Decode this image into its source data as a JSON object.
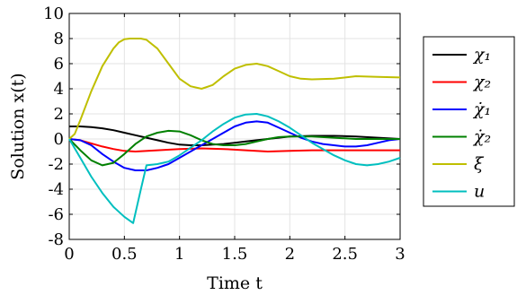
{
  "chart_data": {
    "type": "line",
    "xlabel": "Time t",
    "ylabel": "Solution x(t)",
    "xlim": [
      0,
      3
    ],
    "ylim": [
      -8,
      10
    ],
    "xticks": [
      0,
      0.5,
      1,
      1.5,
      2,
      2.5,
      3
    ],
    "yticks": [
      -8,
      -6,
      -4,
      -2,
      0,
      2,
      4,
      6,
      8,
      10
    ],
    "xtick_labels": [
      "0",
      "0.5",
      "1",
      "1.5",
      "2",
      "2.5",
      "3"
    ],
    "ytick_labels": [
      "-8",
      "-6",
      "-4",
      "-2",
      "0",
      "2",
      "4",
      "6",
      "8",
      "10"
    ],
    "grid": true,
    "legend_position": "outside-right",
    "series": [
      {
        "name": "χ₁",
        "color": "#000000",
        "x": [
          0,
          0.1,
          0.2,
          0.3,
          0.4,
          0.5,
          0.6,
          0.7,
          0.8,
          0.9,
          1.0,
          1.1,
          1.2,
          1.3,
          1.4,
          1.5,
          1.6,
          1.7,
          1.8,
          1.9,
          2.0,
          2.2,
          2.4,
          2.6,
          2.8,
          3.0
        ],
        "y": [
          1.0,
          1.0,
          0.95,
          0.85,
          0.7,
          0.5,
          0.3,
          0.1,
          -0.1,
          -0.3,
          -0.45,
          -0.5,
          -0.5,
          -0.45,
          -0.4,
          -0.3,
          -0.2,
          -0.1,
          0.0,
          0.1,
          0.2,
          0.25,
          0.25,
          0.2,
          0.1,
          0.0
        ]
      },
      {
        "name": "χ₂",
        "color": "#ff0000",
        "x": [
          0,
          0.1,
          0.2,
          0.3,
          0.4,
          0.5,
          0.6,
          0.8,
          1.0,
          1.2,
          1.4,
          1.6,
          1.8,
          2.0,
          2.2,
          2.4,
          2.6,
          2.8,
          3.0
        ],
        "y": [
          0,
          -0.1,
          -0.35,
          -0.6,
          -0.8,
          -0.95,
          -1.0,
          -0.9,
          -0.8,
          -0.75,
          -0.8,
          -0.9,
          -1.0,
          -0.95,
          -0.9,
          -0.9,
          -0.9,
          -0.9,
          -0.9
        ]
      },
      {
        "name": "χ̇₁",
        "color": "#0000ff",
        "x": [
          0,
          0.1,
          0.2,
          0.3,
          0.4,
          0.5,
          0.6,
          0.7,
          0.8,
          0.9,
          1.0,
          1.1,
          1.2,
          1.3,
          1.4,
          1.5,
          1.6,
          1.7,
          1.8,
          1.9,
          2.0,
          2.1,
          2.2,
          2.3,
          2.4,
          2.5,
          2.6,
          2.7,
          2.8,
          2.9,
          3.0
        ],
        "y": [
          0,
          -0.1,
          -0.5,
          -1.2,
          -1.8,
          -2.3,
          -2.5,
          -2.5,
          -2.3,
          -2.0,
          -1.5,
          -1.0,
          -0.5,
          0.0,
          0.5,
          1.0,
          1.3,
          1.4,
          1.3,
          0.9,
          0.5,
          0.1,
          -0.2,
          -0.4,
          -0.5,
          -0.6,
          -0.6,
          -0.5,
          -0.3,
          -0.1,
          0.0
        ]
      },
      {
        "name": "χ̇₂",
        "color": "#008000",
        "x": [
          0,
          0.1,
          0.2,
          0.3,
          0.4,
          0.5,
          0.6,
          0.7,
          0.8,
          0.9,
          1.0,
          1.1,
          1.2,
          1.3,
          1.4,
          1.5,
          1.6,
          1.7,
          1.8,
          1.9,
          2.0,
          2.2,
          2.4,
          2.6,
          2.8,
          3.0
        ],
        "y": [
          0,
          -0.9,
          -1.7,
          -2.1,
          -1.9,
          -1.2,
          -0.4,
          0.2,
          0.5,
          0.65,
          0.6,
          0.3,
          -0.1,
          -0.4,
          -0.5,
          -0.5,
          -0.4,
          -0.2,
          0.0,
          0.15,
          0.2,
          0.2,
          0.1,
          0.0,
          0.0,
          0.0
        ]
      },
      {
        "name": "ξ",
        "color": "#bfbf00",
        "x": [
          0,
          0.05,
          0.1,
          0.2,
          0.3,
          0.4,
          0.45,
          0.5,
          0.55,
          0.6,
          0.65,
          0.7,
          0.8,
          0.9,
          1.0,
          1.1,
          1.2,
          1.3,
          1.4,
          1.5,
          1.6,
          1.7,
          1.8,
          1.9,
          2.0,
          2.1,
          2.2,
          2.4,
          2.6,
          2.8,
          3.0
        ],
        "y": [
          0,
          0.4,
          1.5,
          3.8,
          5.8,
          7.2,
          7.7,
          7.95,
          8.0,
          8.0,
          8.0,
          7.9,
          7.2,
          6.0,
          4.8,
          4.2,
          4.0,
          4.3,
          5.0,
          5.6,
          5.9,
          6.0,
          5.8,
          5.4,
          5.0,
          4.8,
          4.75,
          4.8,
          5.0,
          4.95,
          4.9
        ]
      },
      {
        "name": "u",
        "color": "#00bfbf",
        "x": [
          0,
          0.1,
          0.2,
          0.3,
          0.4,
          0.5,
          0.58,
          0.65,
          0.7,
          0.8,
          0.9,
          1.0,
          1.1,
          1.2,
          1.3,
          1.4,
          1.5,
          1.6,
          1.7,
          1.8,
          1.9,
          2.0,
          2.1,
          2.2,
          2.3,
          2.4,
          2.5,
          2.6,
          2.7,
          2.8,
          2.9,
          3.0
        ],
        "y": [
          0,
          -1.5,
          -3.0,
          -4.3,
          -5.4,
          -6.2,
          -6.7,
          -4.0,
          -2.1,
          -2.0,
          -1.8,
          -1.3,
          -0.7,
          -0.1,
          0.6,
          1.2,
          1.7,
          1.95,
          2.0,
          1.8,
          1.4,
          0.9,
          0.3,
          -0.3,
          -0.8,
          -1.3,
          -1.7,
          -2.0,
          -2.1,
          -2.0,
          -1.8,
          -1.5
        ]
      }
    ]
  }
}
